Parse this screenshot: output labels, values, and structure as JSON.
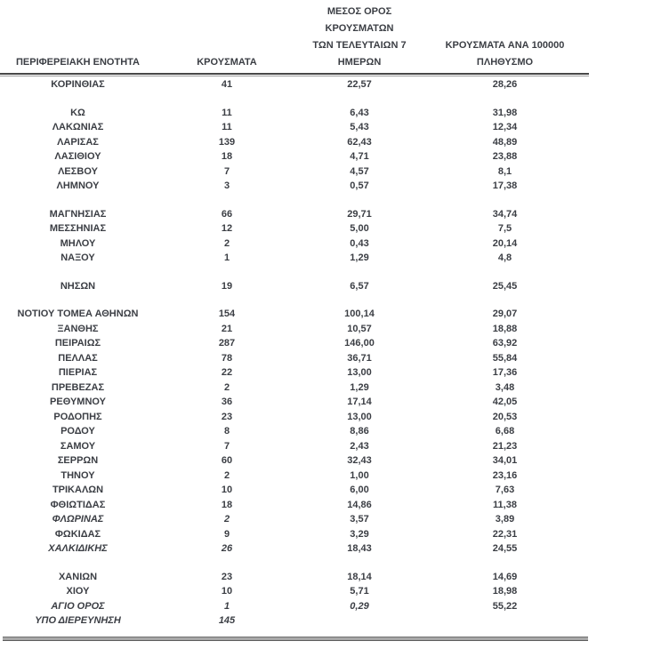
{
  "page": {
    "background": "#ffffff",
    "text_color": "#3b3e44",
    "rule_dark_color": "#474747",
    "rule_gray_color": "#9b9b9b",
    "decimal_separator": ","
  },
  "table": {
    "headers": {
      "region": "ΠΕΡΙΦΕΡΕΙΑΚΗ ΕΝΟΤΗΤΑ",
      "cases": "ΚΡΟΥΣΜΑΤΑ",
      "avg7_lines": [
        "ΜΕΣΟΣ ΟΡΟΣ ΚΡΟΥΣΜΑΤΩΝ",
        "ΤΩΝ ΤΕΛΕΥΤΑΙΩΝ 7",
        "ΗΜΕΡΩΝ"
      ],
      "per100k_lines": [
        "ΚΡΟΥΣΜΑΤΑ ΑΝΑ 100000",
        "ΠΛΗΘΥΣΜΟ"
      ]
    },
    "rows": [
      {
        "name": "ΚΟΡΙΝΘΙΑΣ",
        "cases": "41",
        "avg7": "22,57",
        "per100k": "28,26",
        "spacer_before": false,
        "italic_cells": []
      },
      {
        "name": "ΚΩ",
        "cases": "11",
        "avg7": "6,43",
        "per100k": "31,98",
        "spacer_before": true,
        "italic_cells": []
      },
      {
        "name": "ΛΑΚΩΝΙΑΣ",
        "cases": "11",
        "avg7": "5,43",
        "per100k": "12,34",
        "spacer_before": false,
        "italic_cells": []
      },
      {
        "name": "ΛΑΡΙΣΑΣ",
        "cases": "139",
        "avg7": "62,43",
        "per100k": "48,89",
        "spacer_before": false,
        "italic_cells": []
      },
      {
        "name": "ΛΑΣΙΘΙΟΥ",
        "cases": "18",
        "avg7": "4,71",
        "per100k": "23,88",
        "spacer_before": false,
        "italic_cells": []
      },
      {
        "name": "ΛΕΣΒΟΥ",
        "cases": "7",
        "avg7": "4,57",
        "per100k": "8,1",
        "spacer_before": false,
        "italic_cells": []
      },
      {
        "name": "ΛΗΜΝΟΥ",
        "cases": "3",
        "avg7": "0,57",
        "per100k": "17,38",
        "spacer_before": false,
        "italic_cells": []
      },
      {
        "name": "ΜΑΓΝΗΣΙΑΣ",
        "cases": "66",
        "avg7": "29,71",
        "per100k": "34,74",
        "spacer_before": true,
        "italic_cells": []
      },
      {
        "name": "ΜΕΣΣΗΝΙΑΣ",
        "cases": "12",
        "avg7": "5,00",
        "per100k": "7,5",
        "spacer_before": false,
        "italic_cells": []
      },
      {
        "name": "ΜΗΛΟΥ",
        "cases": "2",
        "avg7": "0,43",
        "per100k": "20,14",
        "spacer_before": false,
        "italic_cells": []
      },
      {
        "name": "ΝΑΞΟΥ",
        "cases": "1",
        "avg7": "1,29",
        "per100k": "4,8",
        "spacer_before": false,
        "italic_cells": []
      },
      {
        "name": "ΝΗΣΩΝ",
        "cases": "19",
        "avg7": "6,57",
        "per100k": "25,45",
        "spacer_before": true,
        "italic_cells": []
      },
      {
        "name": "ΝΟΤΙΟΥ ΤΟΜΕΑ ΑΘΗΝΩΝ",
        "cases": "154",
        "avg7": "100,14",
        "per100k": "29,07",
        "spacer_before": true,
        "italic_cells": []
      },
      {
        "name": "ΞΑΝΘΗΣ",
        "cases": "21",
        "avg7": "10,57",
        "per100k": "18,88",
        "spacer_before": false,
        "italic_cells": []
      },
      {
        "name": "ΠΕΙΡΑΙΩΣ",
        "cases": "287",
        "avg7": "146,00",
        "per100k": "63,92",
        "spacer_before": false,
        "italic_cells": []
      },
      {
        "name": "ΠΕΛΛΑΣ",
        "cases": "78",
        "avg7": "36,71",
        "per100k": "55,84",
        "spacer_before": false,
        "italic_cells": []
      },
      {
        "name": "ΠΙΕΡΙΑΣ",
        "cases": "22",
        "avg7": "13,00",
        "per100k": "17,36",
        "spacer_before": false,
        "italic_cells": []
      },
      {
        "name": "ΠΡΕΒΕΖΑΣ",
        "cases": "2",
        "avg7": "1,29",
        "per100k": "3,48",
        "spacer_before": false,
        "italic_cells": []
      },
      {
        "name": "ΡΕΘΥΜΝΟΥ",
        "cases": "36",
        "avg7": "17,14",
        "per100k": "42,05",
        "spacer_before": false,
        "italic_cells": []
      },
      {
        "name": "ΡΟΔΟΠΗΣ",
        "cases": "23",
        "avg7": "13,00",
        "per100k": "20,53",
        "spacer_before": false,
        "italic_cells": []
      },
      {
        "name": "ΡΟΔΟΥ",
        "cases": "8",
        "avg7": "8,86",
        "per100k": "6,68",
        "spacer_before": false,
        "italic_cells": []
      },
      {
        "name": "ΣΑΜΟΥ",
        "cases": "7",
        "avg7": "2,43",
        "per100k": "21,23",
        "spacer_before": false,
        "italic_cells": []
      },
      {
        "name": "ΣΕΡΡΩΝ",
        "cases": "60",
        "avg7": "32,43",
        "per100k": "34,01",
        "spacer_before": false,
        "italic_cells": []
      },
      {
        "name": "ΤΗΝΟΥ",
        "cases": "2",
        "avg7": "1,00",
        "per100k": "23,16",
        "spacer_before": false,
        "italic_cells": []
      },
      {
        "name": "ΤΡΙΚΑΛΩΝ",
        "cases": "10",
        "avg7": "6,00",
        "per100k": "7,63",
        "spacer_before": false,
        "italic_cells": []
      },
      {
        "name": "ΦΘΙΩΤΙΔΑΣ",
        "cases": "18",
        "avg7": "14,86",
        "per100k": "11,38",
        "spacer_before": false,
        "italic_cells": []
      },
      {
        "name": "ΦΛΩΡΙΝΑΣ",
        "cases": "2",
        "avg7": "3,57",
        "per100k": "3,89",
        "spacer_before": false,
        "italic_cells": [
          "name",
          "cases"
        ]
      },
      {
        "name": "ΦΩΚΙΔΑΣ",
        "cases": "9",
        "avg7": "3,29",
        "per100k": "22,31",
        "spacer_before": false,
        "italic_cells": []
      },
      {
        "name": "ΧΑΛΚΙΔΙΚΗΣ",
        "cases": "26",
        "avg7": "18,43",
        "per100k": "24,55",
        "spacer_before": false,
        "italic_cells": [
          "name",
          "cases"
        ]
      },
      {
        "name": "ΧΑΝΙΩΝ",
        "cases": "23",
        "avg7": "18,14",
        "per100k": "14,69",
        "spacer_before": true,
        "italic_cells": []
      },
      {
        "name": "ΧΙΟΥ",
        "cases": "10",
        "avg7": "5,71",
        "per100k": "18,98",
        "spacer_before": false,
        "italic_cells": []
      },
      {
        "name": "ΑΓΙΟ ΟΡΟΣ",
        "cases": "1",
        "avg7": "0,29",
        "per100k": "55,22",
        "spacer_before": false,
        "italic_cells": [
          "name",
          "cases",
          "avg7"
        ]
      },
      {
        "name": "ΥΠΟ ΔΙΕΡΕΥΝΗΣΗ",
        "cases": "145",
        "avg7": "",
        "per100k": "",
        "spacer_before": false,
        "italic_cells": [
          "name",
          "cases"
        ]
      }
    ]
  }
}
